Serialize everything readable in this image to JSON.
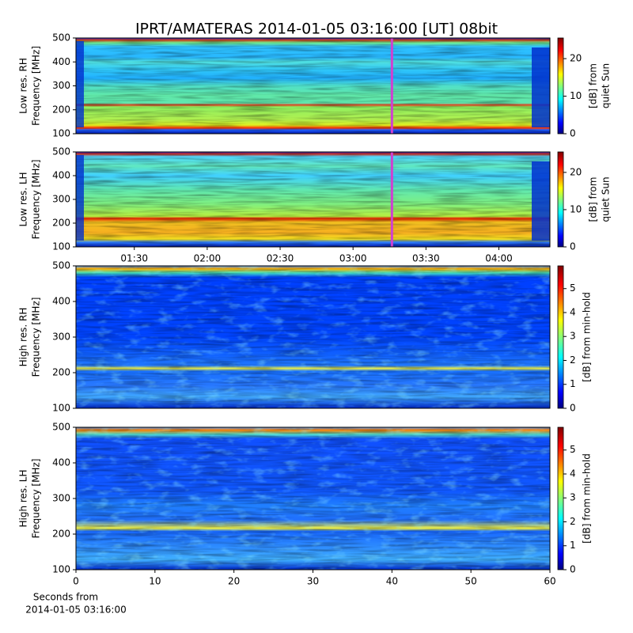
{
  "title": "IPRT/AMATERAS 2014-01-05 03:16:00 [UT]   08bit",
  "chart_data": [
    {
      "type": "heatmap",
      "colormap": "jet",
      "ylabel": [
        "Low res. RH",
        "Frequency [MHz]"
      ],
      "ylim": [
        100,
        500
      ],
      "yticks": [
        100,
        200,
        300,
        400,
        500
      ],
      "xlim": [
        66,
        261
      ],
      "marker_x": 196,
      "colorbar": {
        "label": [
          "[dB] from",
          "quiet Sun"
        ],
        "zlim": [
          0,
          25.5
        ],
        "zticks": [
          0,
          10,
          20
        ]
      }
    },
    {
      "type": "heatmap",
      "colormap": "jet",
      "ylabel": [
        "Low res. LH",
        "Frequency [MHz]"
      ],
      "ylim": [
        100,
        500
      ],
      "yticks": [
        100,
        200,
        300,
        400,
        500
      ],
      "xlim": [
        66,
        261
      ],
      "marker_x": 196,
      "xticks": [
        {
          "value": 90,
          "label": "01:30"
        },
        {
          "value": 120,
          "label": "02:00"
        },
        {
          "value": 150,
          "label": "02:30"
        },
        {
          "value": 180,
          "label": "03:00"
        },
        {
          "value": 210,
          "label": "03:30"
        },
        {
          "value": 240,
          "label": "04:00"
        }
      ],
      "colorbar": {
        "label": [
          "[dB] from",
          "quiet Sun"
        ],
        "zlim": [
          0,
          25.5
        ],
        "zticks": [
          0,
          10,
          20
        ]
      }
    },
    {
      "type": "heatmap",
      "colormap": "jet",
      "ylabel": [
        "High res. RH",
        "Frequency [MHz]"
      ],
      "ylim": [
        100,
        500
      ],
      "yticks": [
        100,
        200,
        300,
        400,
        500
      ],
      "xlim": [
        0,
        60
      ],
      "colorbar": {
        "label": [
          "[dB] from min-hold"
        ],
        "zlim": [
          0,
          5.95
        ],
        "zticks": [
          0,
          1,
          2,
          3,
          4,
          5
        ]
      }
    },
    {
      "type": "heatmap",
      "colormap": "jet",
      "ylabel": [
        "High res. LH",
        "Frequency [MHz]"
      ],
      "ylim": [
        100,
        500
      ],
      "yticks": [
        100,
        200,
        300,
        400,
        500
      ],
      "xlim": [
        0,
        60
      ],
      "xticks": [
        0,
        10,
        20,
        30,
        40,
        50,
        60
      ],
      "xlabel": [
        "Seconds from",
        "2014-01-05 03:16:00"
      ],
      "colorbar": {
        "label": [
          "[dB] from min-hold"
        ],
        "zlim": [
          0,
          5.95
        ],
        "zticks": [
          0,
          1,
          2,
          3,
          4,
          5
        ]
      }
    }
  ]
}
